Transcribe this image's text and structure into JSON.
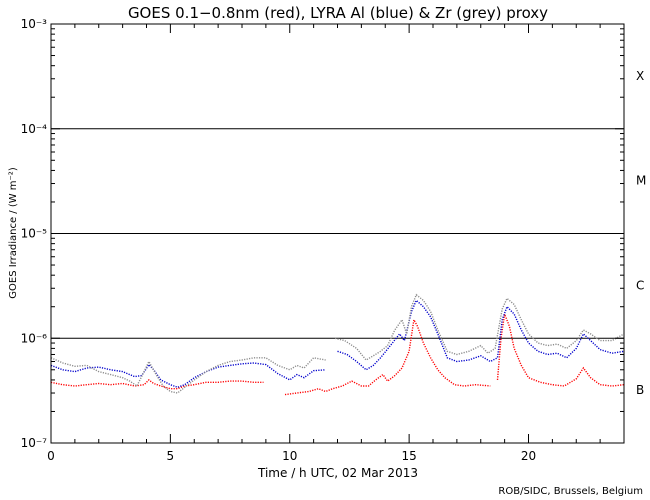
{
  "chart_data": {
    "type": "line",
    "title": "GOES 0.1−0.8nm (red), LYRA Al (blue) & Zr (grey) proxy",
    "xlabel": "Time / h UTC, 02 Mar 2013",
    "ylabel": "GOES Irradiance / (W m⁻²)",
    "credit": "ROB/SIDC, Brussels, Belgium",
    "xlim": [
      0,
      24
    ],
    "ylim": [
      1e-07,
      0.001
    ],
    "yscale": "log",
    "x_ticks": [
      0,
      5,
      10,
      15,
      20
    ],
    "y_ticks": [
      {
        "value": 1e-07,
        "label": "10⁻⁷"
      },
      {
        "value": 1e-06,
        "label": "10⁻⁶"
      },
      {
        "value": 1e-05,
        "label": "10⁻⁵"
      },
      {
        "value": 0.0001,
        "label": "10⁻⁴"
      },
      {
        "value": 0.001,
        "label": "10⁻³"
      }
    ],
    "class_lines": [
      1e-06,
      1e-05,
      0.0001
    ],
    "flare_classes": [
      {
        "label": "X",
        "value": 0.00032
      },
      {
        "label": "M",
        "value": 3.2e-05
      },
      {
        "label": "C",
        "value": 3.2e-06
      },
      {
        "label": "B",
        "value": 3.2e-07
      }
    ],
    "series": [
      {
        "name": "GOES 0.1-0.8nm",
        "color": "#ff0000",
        "points": [
          [
            0.0,
            3.8e-07
          ],
          [
            0.5,
            3.6e-07
          ],
          [
            1.0,
            3.5e-07
          ],
          [
            1.5,
            3.6e-07
          ],
          [
            2.0,
            3.7e-07
          ],
          [
            2.5,
            3.6e-07
          ],
          [
            3.0,
            3.7e-07
          ],
          [
            3.5,
            3.5e-07
          ],
          [
            3.9,
            3.6e-07
          ],
          [
            4.1,
            4e-07
          ],
          [
            4.3,
            3.7e-07
          ],
          [
            4.6,
            3.5e-07
          ],
          [
            5.0,
            3.3e-07
          ],
          [
            5.3,
            3.3e-07
          ],
          [
            5.6,
            3.5e-07
          ],
          [
            6.0,
            3.6e-07
          ],
          [
            6.5,
            3.8e-07
          ],
          [
            7.0,
            3.8e-07
          ],
          [
            7.5,
            3.9e-07
          ],
          [
            8.0,
            3.9e-07
          ],
          [
            8.5,
            3.8e-07
          ],
          [
            8.9,
            3.8e-07
          ],
          null,
          [
            9.8,
            2.9e-07
          ],
          [
            10.3,
            3e-07
          ],
          [
            10.8,
            3.1e-07
          ],
          [
            11.2,
            3.3e-07
          ],
          [
            11.5,
            3.1e-07
          ],
          [
            11.8,
            3.3e-07
          ],
          [
            12.2,
            3.5e-07
          ],
          [
            12.6,
            3.9e-07
          ],
          [
            13.0,
            3.5e-07
          ],
          [
            13.3,
            3.5e-07
          ],
          [
            13.6,
            4e-07
          ],
          [
            13.9,
            4.5e-07
          ],
          [
            14.1,
            3.9e-07
          ],
          [
            14.4,
            4.4e-07
          ],
          [
            14.7,
            5.2e-07
          ],
          [
            15.0,
            7.5e-07
          ],
          [
            15.2,
            1.5e-06
          ],
          [
            15.35,
            1.3e-06
          ],
          [
            15.6,
            9e-07
          ],
          [
            15.9,
            6.5e-07
          ],
          [
            16.2,
            5e-07
          ],
          [
            16.5,
            4.2e-07
          ],
          [
            16.9,
            3.6e-07
          ],
          [
            17.3,
            3.5e-07
          ],
          [
            17.8,
            3.6e-07
          ],
          [
            18.4,
            3.5e-07
          ],
          null,
          [
            18.7,
            4e-07
          ],
          [
            18.85,
            1e-06
          ],
          [
            19.0,
            1.7e-06
          ],
          [
            19.2,
            1.3e-06
          ],
          [
            19.4,
            8e-07
          ],
          [
            19.7,
            5.5e-07
          ],
          [
            20.0,
            4.2e-07
          ],
          [
            20.5,
            3.8e-07
          ],
          [
            21.0,
            3.6e-07
          ],
          [
            21.5,
            3.5e-07
          ],
          [
            22.0,
            4.1e-07
          ],
          [
            22.3,
            5.2e-07
          ],
          [
            22.6,
            4.2e-07
          ],
          [
            23.0,
            3.6e-07
          ],
          [
            23.5,
            3.5e-07
          ],
          [
            24.0,
            3.6e-07
          ]
        ]
      },
      {
        "name": "LYRA Al proxy",
        "color": "#0000cc",
        "points": [
          [
            0.0,
            5.5e-07
          ],
          [
            0.5,
            5e-07
          ],
          [
            1.0,
            4.8e-07
          ],
          [
            1.5,
            5.2e-07
          ],
          [
            2.0,
            5.3e-07
          ],
          [
            2.5,
            5e-07
          ],
          [
            3.0,
            4.8e-07
          ],
          [
            3.5,
            4.3e-07
          ],
          [
            3.8,
            4.4e-07
          ],
          [
            4.1,
            5.6e-07
          ],
          [
            4.3,
            5e-07
          ],
          [
            4.6,
            4e-07
          ],
          [
            5.0,
            3.6e-07
          ],
          [
            5.3,
            3.4e-07
          ],
          [
            5.6,
            3.6e-07
          ],
          [
            6.0,
            4.2e-07
          ],
          [
            6.5,
            4.8e-07
          ],
          [
            7.0,
            5.3e-07
          ],
          [
            7.5,
            5.5e-07
          ],
          [
            8.0,
            5.7e-07
          ],
          [
            8.5,
            5.8e-07
          ],
          [
            9.0,
            5.6e-07
          ],
          [
            9.5,
            4.6e-07
          ],
          [
            10.0,
            4e-07
          ],
          [
            10.3,
            4.5e-07
          ],
          [
            10.6,
            4.2e-07
          ],
          [
            11.0,
            4.9e-07
          ],
          [
            11.5,
            5e-07
          ],
          null,
          [
            12.0,
            7.5e-07
          ],
          [
            12.4,
            7e-07
          ],
          [
            12.8,
            6e-07
          ],
          [
            13.2,
            5e-07
          ],
          [
            13.5,
            5.5e-07
          ],
          [
            13.8,
            6.5e-07
          ],
          [
            14.0,
            7.4e-07
          ],
          [
            14.3,
            9e-07
          ],
          [
            14.6,
            1.1e-06
          ],
          [
            14.8,
            9.5e-07
          ],
          [
            15.1,
            1.8e-06
          ],
          [
            15.3,
            2.3e-06
          ],
          [
            15.6,
            2e-06
          ],
          [
            15.9,
            1.6e-06
          ],
          [
            16.2,
            1.1e-06
          ],
          [
            16.6,
            6.5e-07
          ],
          [
            17.0,
            6e-07
          ],
          [
            17.5,
            6.2e-07
          ],
          [
            18.0,
            6.8e-07
          ],
          [
            18.4,
            6e-07
          ],
          [
            18.7,
            6.5e-07
          ],
          [
            18.9,
            1.5e-06
          ],
          [
            19.1,
            2e-06
          ],
          [
            19.4,
            1.7e-06
          ],
          [
            19.7,
            1.2e-06
          ],
          [
            20.0,
            9e-07
          ],
          [
            20.4,
            7.5e-07
          ],
          [
            20.8,
            7e-07
          ],
          [
            21.2,
            7.2e-07
          ],
          [
            21.6,
            6.5e-07
          ],
          [
            22.0,
            8e-07
          ],
          [
            22.3,
            1.1e-06
          ],
          [
            22.6,
            9.5e-07
          ],
          [
            23.0,
            7.8e-07
          ],
          [
            23.5,
            7.2e-07
          ],
          [
            24.0,
            7.5e-07
          ]
        ]
      },
      {
        "name": "LYRA Zr proxy",
        "color": "#8c8c8c",
        "points": [
          [
            0.0,
            6.5e-07
          ],
          [
            0.5,
            5.8e-07
          ],
          [
            1.0,
            5.4e-07
          ],
          [
            1.5,
            5.5e-07
          ],
          [
            2.0,
            4.8e-07
          ],
          [
            2.5,
            4.5e-07
          ],
          [
            3.0,
            4.2e-07
          ],
          [
            3.3,
            3.9e-07
          ],
          [
            3.6,
            3.5e-07
          ],
          [
            3.9,
            4.8e-07
          ],
          [
            4.1,
            6e-07
          ],
          [
            4.4,
            4.5e-07
          ],
          [
            4.7,
            3.5e-07
          ],
          [
            5.0,
            3.1e-07
          ],
          [
            5.3,
            3e-07
          ],
          [
            5.6,
            3.4e-07
          ],
          [
            6.0,
            4e-07
          ],
          [
            6.5,
            4.8e-07
          ],
          [
            7.0,
            5.5e-07
          ],
          [
            7.5,
            6e-07
          ],
          [
            8.0,
            6.2e-07
          ],
          [
            8.5,
            6.5e-07
          ],
          [
            9.0,
            6.5e-07
          ],
          [
            9.5,
            5.5e-07
          ],
          [
            10.0,
            5e-07
          ],
          [
            10.3,
            5.5e-07
          ],
          [
            10.6,
            5.2e-07
          ],
          [
            11.0,
            6.5e-07
          ],
          [
            11.5,
            6.2e-07
          ],
          null,
          [
            11.9,
            1e-06
          ],
          [
            12.3,
            9.5e-07
          ],
          [
            12.8,
            8e-07
          ],
          [
            13.2,
            6.2e-07
          ],
          [
            13.5,
            6.8e-07
          ],
          [
            13.8,
            7.5e-07
          ],
          [
            14.1,
            8.5e-07
          ],
          [
            14.4,
            1.2e-06
          ],
          [
            14.7,
            1.5e-06
          ],
          [
            14.9,
            1.1e-06
          ],
          [
            15.1,
            2e-06
          ],
          [
            15.3,
            2.6e-06
          ],
          [
            15.6,
            2.3e-06
          ],
          [
            15.9,
            1.8e-06
          ],
          [
            16.2,
            1.2e-06
          ],
          [
            16.6,
            7.5e-07
          ],
          [
            17.0,
            7e-07
          ],
          [
            17.5,
            7.5e-07
          ],
          [
            18.0,
            8.5e-07
          ],
          [
            18.3,
            7.2e-07
          ],
          [
            18.6,
            8e-07
          ],
          [
            18.9,
            1.9e-06
          ],
          [
            19.1,
            2.4e-06
          ],
          [
            19.4,
            2.1e-06
          ],
          [
            19.7,
            1.5e-06
          ],
          [
            20.0,
            1.1e-06
          ],
          [
            20.4,
            9e-07
          ],
          [
            20.8,
            8.5e-07
          ],
          [
            21.2,
            8.8e-07
          ],
          [
            21.6,
            8e-07
          ],
          [
            22.0,
            9.5e-07
          ],
          [
            22.3,
            1.2e-06
          ],
          [
            22.6,
            1.1e-06
          ],
          [
            23.0,
            9.5e-07
          ],
          [
            23.5,
            9.5e-07
          ],
          [
            24.0,
            1.1e-06
          ]
        ]
      }
    ]
  }
}
